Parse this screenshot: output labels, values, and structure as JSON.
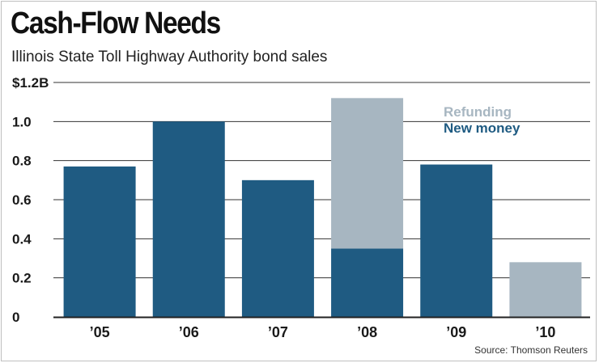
{
  "header": {
    "title": "Cash-Flow Needs",
    "subtitle": "Illinois State Toll Highway Authority bond sales"
  },
  "footer": {
    "source": "Source: Thomson Reuters"
  },
  "colors": {
    "new_money": "#1f5b82",
    "refunding": "#a7b6c1",
    "axis": "#222222",
    "grid": "#333333"
  },
  "chart_data": {
    "type": "bar",
    "stacked": true,
    "title": "Cash-Flow Needs",
    "subtitle": "Illinois State Toll Highway Authority bond sales",
    "xlabel": "",
    "ylabel": "",
    "categories": [
      "’05",
      "’06",
      "’07",
      "’08",
      "’09",
      "’10"
    ],
    "series": [
      {
        "name": "New money",
        "color": "#1f5b82",
        "values": [
          0.77,
          1.0,
          0.7,
          0.35,
          0.78,
          0
        ]
      },
      {
        "name": "Refunding",
        "color": "#a7b6c1",
        "values": [
          0,
          0,
          0,
          0.77,
          0,
          0.28
        ]
      }
    ],
    "ylim": [
      0,
      1.2
    ],
    "yticks": [
      0,
      0.2,
      0.4,
      0.6,
      0.8,
      1.0,
      1.2
    ],
    "ytick_labels": [
      "0",
      "0.2",
      "0.4",
      "0.6",
      "0.8",
      "1.0",
      "$1.2B"
    ],
    "legend": [
      "Refunding",
      "New money"
    ],
    "legend_position": "top-right",
    "grid": true,
    "source": "Source: Thomson Reuters"
  }
}
